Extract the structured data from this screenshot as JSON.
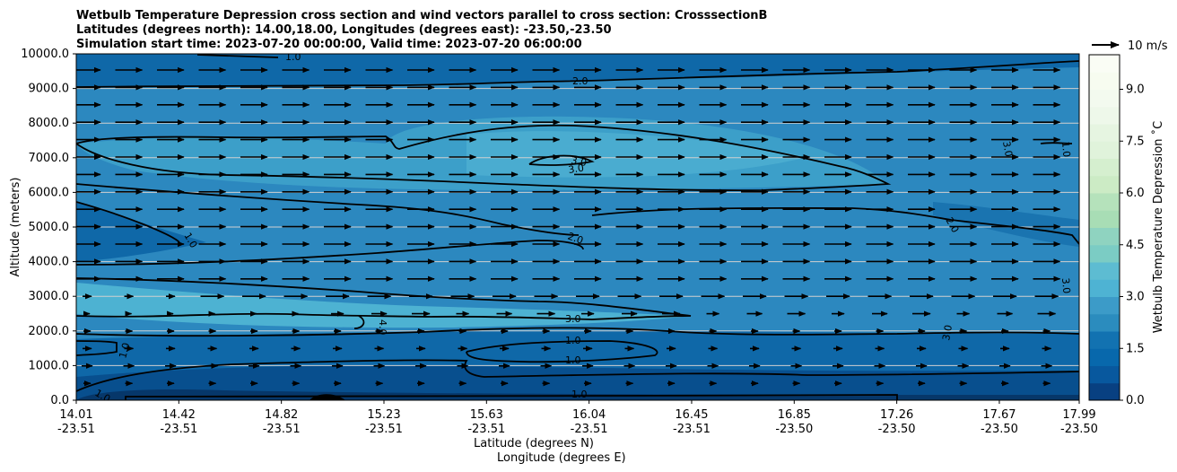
{
  "chart_data": {
    "type": "heatmap",
    "title_lines": [
      "Wetbulb Temperature Depression cross section and wind vectors parallel to cross section: CrosssectionB",
      "Latitudes (degrees north): 14.00,18.00, Longitudes (degrees east): -23.50,-23.50",
      "Simulation start time: 2023-07-20 00:00:00, Valid time: 2023-07-20 06:00:00"
    ],
    "ylabel": "Altitude (meters)",
    "xlabel_lat": "Latitude (degrees N)",
    "xlabel_lon": "Longitude (degrees E)",
    "ylim": [
      0,
      10000
    ],
    "y_ticks": [
      "0.0",
      "1000.0",
      "2000.0",
      "3000.0",
      "4000.0",
      "5000.0",
      "6000.0",
      "7000.0",
      "8000.0",
      "9000.0",
      "10000.0"
    ],
    "x_ticks": [
      {
        "lat": "14.01",
        "lon": "-23.51"
      },
      {
        "lat": "14.42",
        "lon": "-23.51"
      },
      {
        "lat": "14.82",
        "lon": "-23.51"
      },
      {
        "lat": "15.23",
        "lon": "-23.51"
      },
      {
        "lat": "15.63",
        "lon": "-23.51"
      },
      {
        "lat": "16.04",
        "lon": "-23.51"
      },
      {
        "lat": "16.45",
        "lon": "-23.51"
      },
      {
        "lat": "16.85",
        "lon": "-23.50"
      },
      {
        "lat": "17.26",
        "lon": "-23.50"
      },
      {
        "lat": "17.67",
        "lon": "-23.50"
      },
      {
        "lat": "17.99",
        "lon": "-23.50"
      }
    ],
    "colorbar": {
      "label": "Wetbulb Temperature Depression ˚C",
      "range": [
        0,
        10
      ],
      "ticks": [
        "0.0",
        "1.5",
        "3.0",
        "4.5",
        "6.0",
        "7.5",
        "9.0"
      ],
      "levels": [
        0.0,
        0.5,
        1.0,
        1.5,
        2.0,
        2.5,
        3.0,
        3.5,
        4.0,
        4.5,
        5.0,
        5.5,
        6.0,
        6.5,
        7.0,
        7.5,
        8.0,
        8.5,
        9.0,
        9.5,
        10.0
      ],
      "colormap": "GnBu reversed"
    },
    "quiver_key": "10 m/s",
    "grid": "horizontal",
    "contour_labels": [
      "1.0",
      "2.0",
      "3.0",
      "3.0",
      "3.0",
      "1.0",
      "2.0",
      "2.0",
      "3.0",
      "3.0",
      "4.0",
      "1.0",
      "1.0",
      "1.0",
      "1.0",
      "3.0",
      "1.0",
      "1.0"
    ]
  }
}
